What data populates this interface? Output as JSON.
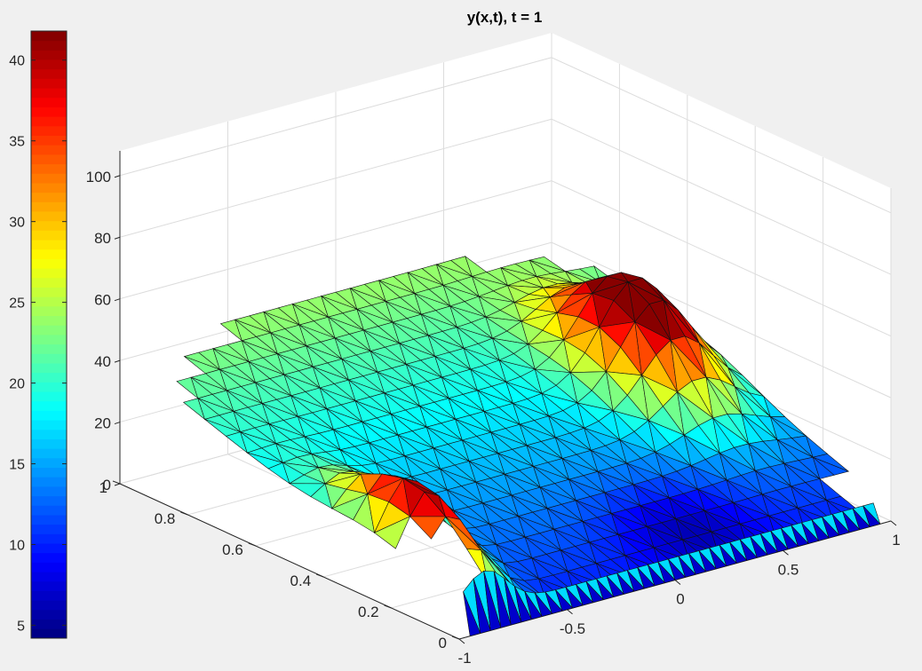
{
  "chart_data": {
    "type": "surface",
    "title": "y(x,t),   t = 1",
    "colorbar": {
      "ticks": [
        "40",
        "35",
        "30",
        "25",
        "20",
        "15",
        "10",
        "5"
      ],
      "tick_values": [
        40,
        35,
        30,
        25,
        20,
        15,
        10,
        5
      ],
      "range": [
        4.2,
        41.8
      ],
      "colormap": "jet"
    },
    "axes": {
      "x": {
        "ticks": [
          "-1",
          "-0.5",
          "0",
          "0.5",
          "1"
        ],
        "range": [
          -1,
          1
        ]
      },
      "y": {
        "ticks": [
          "0",
          "0.2",
          "0.4",
          "0.6",
          "0.8",
          "1"
        ],
        "range": [
          0,
          1
        ]
      },
      "z": {
        "ticks": [
          "0",
          "20",
          "40",
          "60",
          "80",
          "100"
        ],
        "range": [
          0,
          108
        ]
      }
    },
    "grid": true,
    "surface_description_values": {
      "base_level": 10,
      "max_value": 42,
      "min_value": 5
    }
  }
}
